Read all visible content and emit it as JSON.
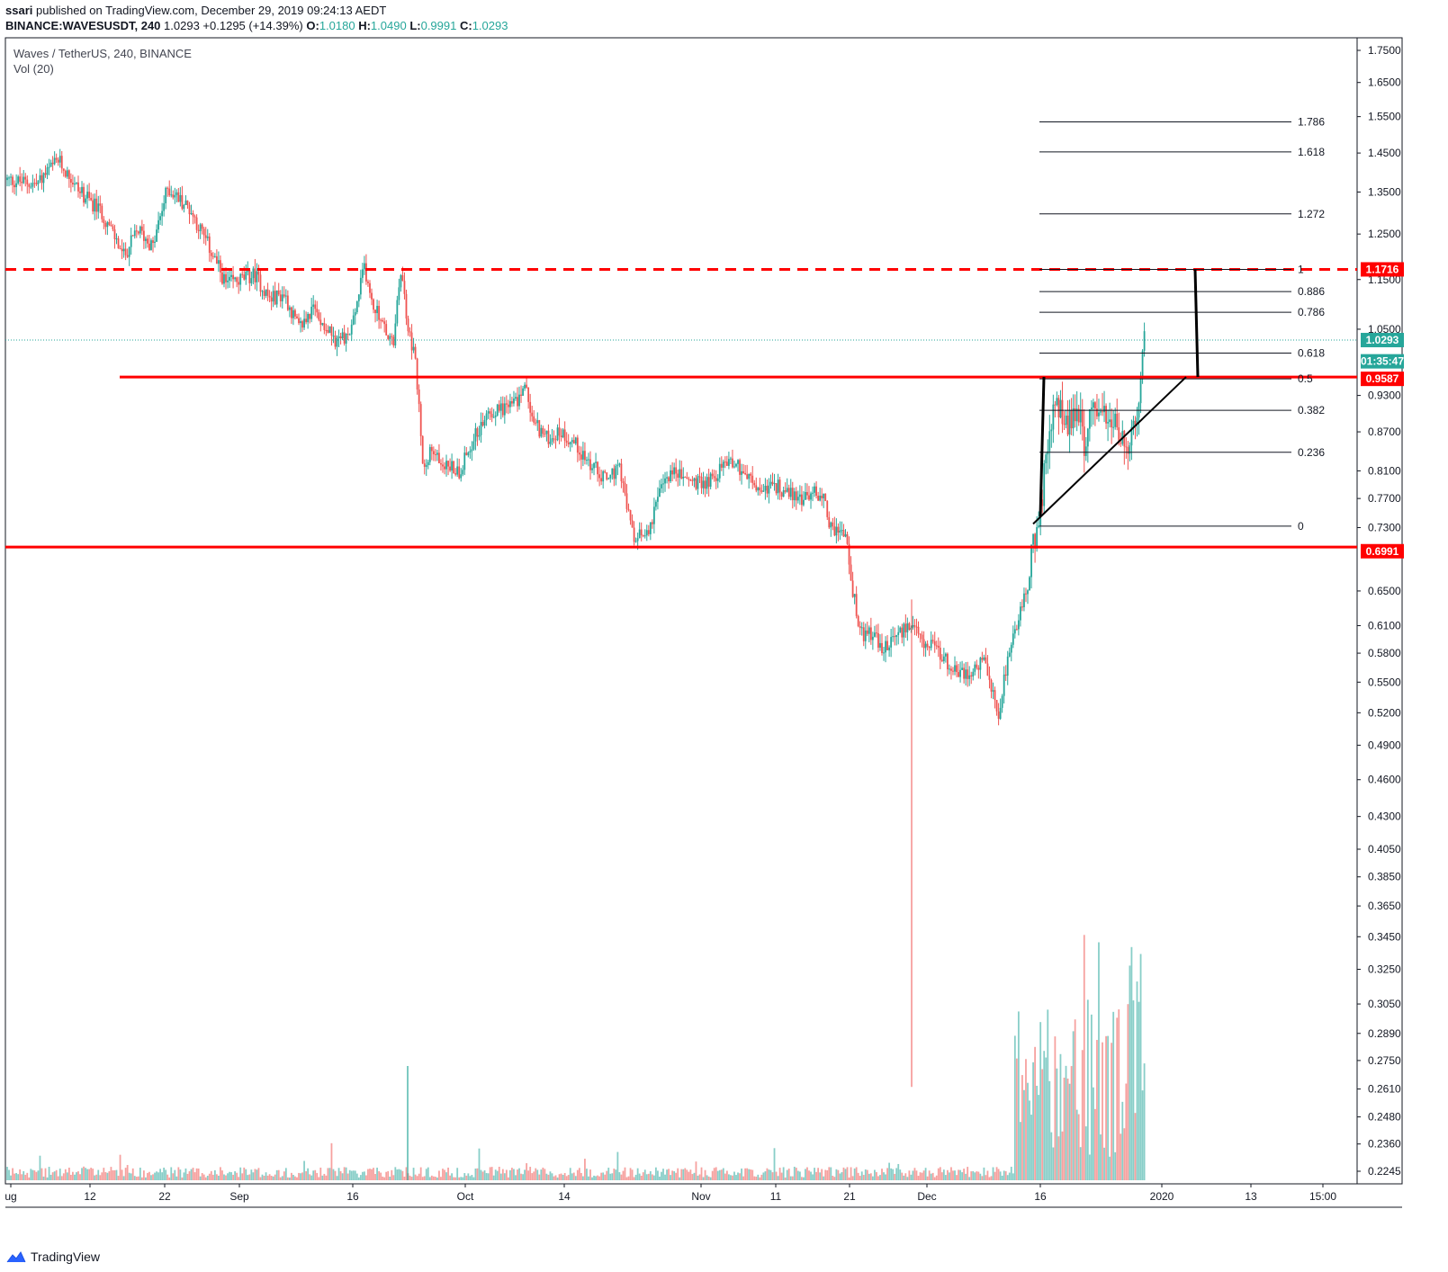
{
  "header": {
    "author": "ssari",
    "published_text": "published on TradingView.com, December 29, 2019 09:24:13 AEDT",
    "symbol": "BINANCE:WAVESUSDT, 240",
    "last": "1.0293",
    "change": "+0.1295 (+14.39%)",
    "o_label": "O:",
    "o_value": "1.0180",
    "h_label": "H:",
    "h_value": "1.0490",
    "l_label": "L:",
    "l_value": "0.9991",
    "c_label": "C:",
    "c_value": "1.0293"
  },
  "legend": {
    "series": "Waves / TetherUS, 240, BINANCE",
    "indicator": "Vol (20)"
  },
  "footer": {
    "brand": "TradingView"
  },
  "colors": {
    "up": "#26a69a",
    "down": "#ef5350",
    "red_line": "#ff0000",
    "fib": "#131722",
    "last_price_tag": "#26a69a"
  },
  "chart_data": {
    "type": "candlestick",
    "y_scale": "log",
    "ylim": [
      0.22,
      1.78
    ],
    "y_ticks": [
      "1.7500",
      "1.6500",
      "1.5500",
      "1.4500",
      "1.3500",
      "1.2500",
      "1.1500",
      "1.0500",
      "0.9300",
      "0.8700",
      "0.8100",
      "0.7700",
      "0.7300",
      "0.6500",
      "0.6100",
      "0.5800",
      "0.5500",
      "0.5200",
      "0.4900",
      "0.4600",
      "0.4300",
      "0.4050",
      "0.3850",
      "0.3650",
      "0.3450",
      "0.3250",
      "0.3050",
      "0.2890",
      "0.2750",
      "0.2610",
      "0.2480",
      "0.2360",
      "0.2245"
    ],
    "x_ticks": [
      "ug",
      "12",
      "22",
      "Sep",
      "16",
      "Oct",
      "14",
      "Nov",
      "11",
      "21",
      "Dec",
      "16",
      "2020",
      "13",
      "15:00"
    ],
    "price_tags": [
      {
        "label": "1.1716",
        "value": 1.1716,
        "color": "#ff0000"
      },
      {
        "label": "1.0293",
        "value": 1.0293,
        "color": "#26a69a"
      },
      {
        "label": "01:35:47",
        "value": 0.99,
        "color": "#26a69a"
      },
      {
        "label": "0.9587",
        "value": 0.9587,
        "color": "#ff0000"
      },
      {
        "label": "0.6991",
        "value": 0.6991,
        "color": "#ff0000"
      }
    ],
    "horizontal_lines": [
      {
        "value": 1.1716,
        "style": "dashed",
        "color": "#ff0000"
      },
      {
        "value": 0.962,
        "style": "solid",
        "color": "#ff0000"
      },
      {
        "value": 0.7045,
        "style": "solid",
        "color": "#ff0000"
      }
    ],
    "fib_levels": [
      {
        "label": "1.786",
        "value": 1.535
      },
      {
        "label": "1.618",
        "value": 1.453
      },
      {
        "label": "1.272",
        "value": 1.297
      },
      {
        "label": "1",
        "value": 1.1716
      },
      {
        "label": "0.886",
        "value": 1.125
      },
      {
        "label": "0.786",
        "value": 1.083
      },
      {
        "label": "0.618",
        "value": 1.005
      },
      {
        "label": "0.5",
        "value": 0.9587
      },
      {
        "label": "0.382",
        "value": 0.905
      },
      {
        "label": "0.236",
        "value": 0.838
      },
      {
        "label": "0",
        "value": 0.732
      }
    ],
    "last_price": 1.0293,
    "price_path": [
      [
        0,
        1.38
      ],
      [
        4,
        1.37
      ],
      [
        7,
        1.43
      ],
      [
        10,
        1.35
      ],
      [
        13,
        1.3
      ],
      [
        16,
        1.2
      ],
      [
        18,
        1.26
      ],
      [
        20,
        1.22
      ],
      [
        22,
        1.36
      ],
      [
        25,
        1.31
      ],
      [
        28,
        1.21
      ],
      [
        30,
        1.14
      ],
      [
        32,
        1.15
      ],
      [
        34,
        1.16
      ],
      [
        36,
        1.11
      ],
      [
        38,
        1.12
      ],
      [
        40,
        1.05
      ],
      [
        42,
        1.09
      ],
      [
        44,
        1.05
      ],
      [
        45,
        1.03
      ],
      [
        47,
        1.04
      ],
      [
        48,
        1.1
      ],
      [
        49,
        1.18
      ],
      [
        50,
        1.1
      ],
      [
        51,
        1.08
      ],
      [
        52,
        1.04
      ],
      [
        53,
        1.02
      ],
      [
        54,
        1.17
      ],
      [
        55,
        1.05
      ],
      [
        56,
        0.99
      ],
      [
        57,
        0.82
      ],
      [
        58,
        0.84
      ],
      [
        60,
        0.82
      ],
      [
        62,
        0.81
      ],
      [
        64,
        0.86
      ],
      [
        66,
        0.9
      ],
      [
        68,
        0.91
      ],
      [
        70,
        0.92
      ],
      [
        71,
        0.95
      ],
      [
        72,
        0.89
      ],
      [
        74,
        0.86
      ],
      [
        76,
        0.87
      ],
      [
        78,
        0.85
      ],
      [
        80,
        0.82
      ],
      [
        82,
        0.8
      ],
      [
        84,
        0.81
      ],
      [
        86,
        0.71
      ],
      [
        88,
        0.73
      ],
      [
        90,
        0.79
      ],
      [
        91,
        0.81
      ],
      [
        93,
        0.8
      ],
      [
        95,
        0.79
      ],
      [
        97,
        0.8
      ],
      [
        99,
        0.83
      ],
      [
        101,
        0.81
      ],
      [
        103,
        0.78
      ],
      [
        105,
        0.79
      ],
      [
        107,
        0.78
      ],
      [
        109,
        0.77
      ],
      [
        111,
        0.78
      ],
      [
        112,
        0.77
      ],
      [
        113,
        0.73
      ],
      [
        115,
        0.72
      ],
      [
        116,
        0.65
      ],
      [
        117,
        0.6
      ],
      [
        119,
        0.6
      ],
      [
        120,
        0.58
      ],
      [
        121,
        0.59
      ],
      [
        122,
        0.6
      ],
      [
        124,
        0.61
      ],
      [
        126,
        0.59
      ],
      [
        128,
        0.58
      ],
      [
        130,
        0.56
      ],
      [
        132,
        0.56
      ],
      [
        134,
        0.57
      ],
      [
        135,
        0.54
      ],
      [
        136,
        0.52
      ],
      [
        137,
        0.56
      ],
      [
        139,
        0.63
      ],
      [
        140,
        0.66
      ],
      [
        141,
        0.72
      ],
      [
        142,
        0.78
      ],
      [
        143,
        0.86
      ],
      [
        144,
        0.92
      ],
      [
        145,
        0.9
      ],
      [
        146,
        0.88
      ],
      [
        147,
        0.9
      ],
      [
        148,
        0.84
      ],
      [
        149,
        0.93
      ],
      [
        150,
        0.91
      ],
      [
        151,
        0.87
      ],
      [
        152,
        0.88
      ],
      [
        153,
        0.85
      ],
      [
        154,
        0.86
      ],
      [
        155,
        0.9
      ],
      [
        156,
        1.03
      ]
    ]
  }
}
